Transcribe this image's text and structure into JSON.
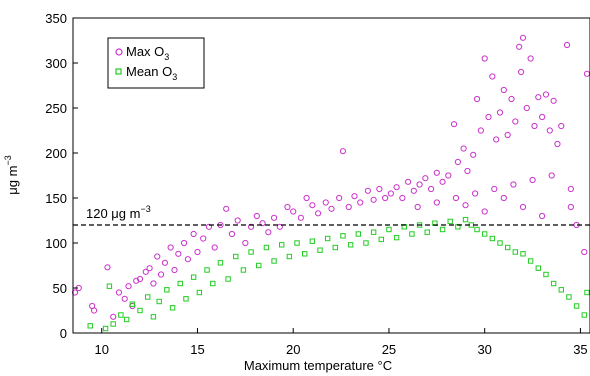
{
  "chart_data": {
    "type": "scatter",
    "title": "",
    "xlabel": "Maximum temperature °C",
    "ylabel": "μg m",
    "ylabel_sup": "−3",
    "xlim": [
      8.5,
      35.5
    ],
    "ylim": [
      0,
      350
    ],
    "xticks": [
      10,
      15,
      20,
      25,
      30,
      35
    ],
    "yticks": [
      0,
      50,
      100,
      150,
      200,
      250,
      300,
      350
    ],
    "ytick_labels": [
      "0",
      "50",
      "100",
      "150",
      "200",
      "250",
      "300",
      "350"
    ],
    "xtick_labels": [
      "10",
      "15",
      "20",
      "25",
      "30",
      "35"
    ],
    "grid": false,
    "legend_position": "top-left",
    "threshold": {
      "value": 120,
      "label": "120 μg m",
      "label_sup": "−3",
      "style": "dashed"
    },
    "series": [
      {
        "name": "Max O",
        "name_sub": "3",
        "marker": "circle",
        "color": "#cc33cc",
        "points": [
          [
            8.6,
            45
          ],
          [
            8.8,
            50
          ],
          [
            9.5,
            30
          ],
          [
            9.6,
            25
          ],
          [
            10.3,
            73
          ],
          [
            10.6,
            18
          ],
          [
            10.9,
            45
          ],
          [
            11.2,
            38
          ],
          [
            11.4,
            52
          ],
          [
            11.6,
            30
          ],
          [
            11.8,
            58
          ],
          [
            12.0,
            60
          ],
          [
            12.3,
            68
          ],
          [
            12.5,
            72
          ],
          [
            12.7,
            55
          ],
          [
            12.9,
            85
          ],
          [
            13.1,
            65
          ],
          [
            13.3,
            78
          ],
          [
            13.6,
            95
          ],
          [
            13.8,
            70
          ],
          [
            14.0,
            88
          ],
          [
            14.3,
            100
          ],
          [
            14.5,
            82
          ],
          [
            14.8,
            110
          ],
          [
            15.0,
            90
          ],
          [
            15.3,
            105
          ],
          [
            15.6,
            118
          ],
          [
            15.9,
            95
          ],
          [
            16.2,
            120
          ],
          [
            16.5,
            138
          ],
          [
            16.8,
            110
          ],
          [
            17.1,
            125
          ],
          [
            17.5,
            100
          ],
          [
            17.8,
            118
          ],
          [
            18.1,
            130
          ],
          [
            18.4,
            122
          ],
          [
            18.7,
            112
          ],
          [
            19.0,
            128
          ],
          [
            19.3,
            118
          ],
          [
            19.7,
            140
          ],
          [
            20.0,
            135
          ],
          [
            20.4,
            128
          ],
          [
            20.7,
            150
          ],
          [
            21.0,
            142
          ],
          [
            21.3,
            133
          ],
          [
            21.7,
            145
          ],
          [
            22.0,
            138
          ],
          [
            22.4,
            150
          ],
          [
            22.6,
            202
          ],
          [
            22.9,
            140
          ],
          [
            23.2,
            152
          ],
          [
            23.5,
            145
          ],
          [
            23.9,
            158
          ],
          [
            24.2,
            148
          ],
          [
            24.5,
            160
          ],
          [
            24.8,
            150
          ],
          [
            25.1,
            155
          ],
          [
            25.4,
            162
          ],
          [
            25.7,
            150
          ],
          [
            26.0,
            168
          ],
          [
            26.3,
            158
          ],
          [
            26.6,
            165
          ],
          [
            26.9,
            172
          ],
          [
            27.2,
            160
          ],
          [
            27.5,
            178
          ],
          [
            27.8,
            168
          ],
          [
            28.1,
            175
          ],
          [
            28.4,
            232
          ],
          [
            28.6,
            190
          ],
          [
            28.9,
            205
          ],
          [
            29.1,
            180
          ],
          [
            29.4,
            198
          ],
          [
            29.6,
            260
          ],
          [
            29.8,
            225
          ],
          [
            30.0,
            305
          ],
          [
            30.2,
            240
          ],
          [
            30.4,
            285
          ],
          [
            30.6,
            215
          ],
          [
            30.8,
            245
          ],
          [
            31.0,
            270
          ],
          [
            31.2,
            220
          ],
          [
            31.4,
            260
          ],
          [
            31.6,
            235
          ],
          [
            31.8,
            318
          ],
          [
            31.9,
            290
          ],
          [
            32.0,
            328
          ],
          [
            32.2,
            250
          ],
          [
            32.4,
            305
          ],
          [
            32.6,
            230
          ],
          [
            32.8,
            262
          ],
          [
            33.0,
            240
          ],
          [
            33.2,
            265
          ],
          [
            33.4,
            225
          ],
          [
            33.6,
            258
          ],
          [
            33.8,
            210
          ],
          [
            34.0,
            230
          ],
          [
            34.3,
            320
          ],
          [
            34.5,
            160
          ],
          [
            34.8,
            120
          ],
          [
            35.2,
            90
          ],
          [
            35.4,
            288
          ],
          [
            26.5,
            140
          ],
          [
            27.5,
            145
          ],
          [
            28.5,
            150
          ],
          [
            29.5,
            155
          ],
          [
            30.5,
            160
          ],
          [
            31.5,
            165
          ],
          [
            32.5,
            170
          ],
          [
            33.5,
            175
          ],
          [
            34.5,
            140
          ],
          [
            33.0,
            130
          ],
          [
            32.0,
            140
          ],
          [
            31.0,
            150
          ],
          [
            30.0,
            135
          ],
          [
            29.0,
            142
          ]
        ]
      },
      {
        "name": "Mean O",
        "name_sub": "3",
        "marker": "square",
        "color": "#22cc22",
        "points": [
          [
            9.4,
            8
          ],
          [
            10.2,
            5
          ],
          [
            10.4,
            52
          ],
          [
            10.6,
            10
          ],
          [
            11.0,
            20
          ],
          [
            11.3,
            15
          ],
          [
            11.6,
            32
          ],
          [
            12.0,
            25
          ],
          [
            12.4,
            40
          ],
          [
            12.7,
            18
          ],
          [
            13.0,
            35
          ],
          [
            13.4,
            48
          ],
          [
            13.7,
            28
          ],
          [
            14.1,
            55
          ],
          [
            14.4,
            38
          ],
          [
            14.8,
            62
          ],
          [
            15.1,
            45
          ],
          [
            15.5,
            70
          ],
          [
            15.8,
            55
          ],
          [
            16.2,
            78
          ],
          [
            16.6,
            60
          ],
          [
            17.0,
            85
          ],
          [
            17.4,
            70
          ],
          [
            17.8,
            90
          ],
          [
            18.2,
            75
          ],
          [
            18.6,
            95
          ],
          [
            19.0,
            80
          ],
          [
            19.4,
            98
          ],
          [
            19.8,
            85
          ],
          [
            20.2,
            100
          ],
          [
            20.6,
            88
          ],
          [
            21.0,
            102
          ],
          [
            21.4,
            92
          ],
          [
            21.8,
            105
          ],
          [
            22.2,
            95
          ],
          [
            22.6,
            108
          ],
          [
            23.0,
            98
          ],
          [
            23.4,
            110
          ],
          [
            23.8,
            100
          ],
          [
            24.2,
            112
          ],
          [
            24.6,
            104
          ],
          [
            25.0,
            115
          ],
          [
            25.4,
            106
          ],
          [
            25.8,
            118
          ],
          [
            26.2,
            110
          ],
          [
            26.6,
            120
          ],
          [
            27.0,
            112
          ],
          [
            27.4,
            122
          ],
          [
            27.8,
            115
          ],
          [
            28.2,
            124
          ],
          [
            28.6,
            118
          ],
          [
            29.0,
            126
          ],
          [
            29.3,
            120
          ],
          [
            29.6,
            115
          ],
          [
            30.0,
            110
          ],
          [
            30.4,
            105
          ],
          [
            30.8,
            100
          ],
          [
            31.2,
            95
          ],
          [
            31.6,
            90
          ],
          [
            32.0,
            88
          ],
          [
            32.4,
            80
          ],
          [
            32.8,
            72
          ],
          [
            33.2,
            65
          ],
          [
            33.6,
            55
          ],
          [
            34.0,
            48
          ],
          [
            34.4,
            40
          ],
          [
            34.8,
            30
          ],
          [
            35.2,
            20
          ],
          [
            35.4,
            45
          ]
        ]
      }
    ]
  }
}
